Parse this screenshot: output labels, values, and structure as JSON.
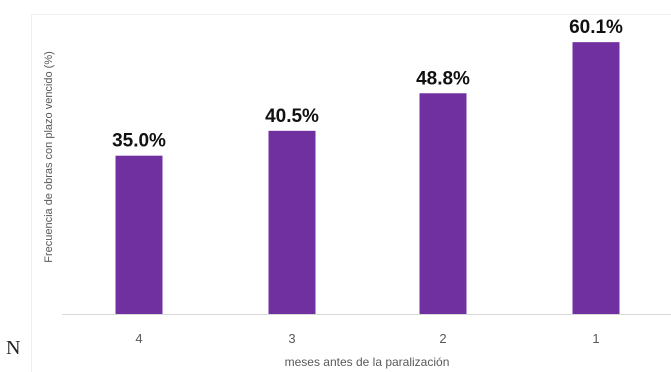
{
  "stray_text": "N",
  "colors": {
    "bar": "#7030A0",
    "axis_line": "#d9d9d9",
    "tick_text": "#595959",
    "label_text": "#595959",
    "data_label": "#111111"
  },
  "chart_data": {
    "type": "bar",
    "title": "",
    "xlabel": "meses antes de la paralización",
    "ylabel": "Frecuencia de obras con plazo vencido (%)",
    "categories": [
      "4",
      "3",
      "2",
      "1"
    ],
    "values": [
      35.0,
      40.5,
      48.8,
      60.1
    ],
    "data_labels": [
      "35.0%",
      "40.5%",
      "48.8%",
      "60.1%"
    ],
    "ylim": [
      0,
      65
    ],
    "grid": false,
    "legend": "none"
  }
}
